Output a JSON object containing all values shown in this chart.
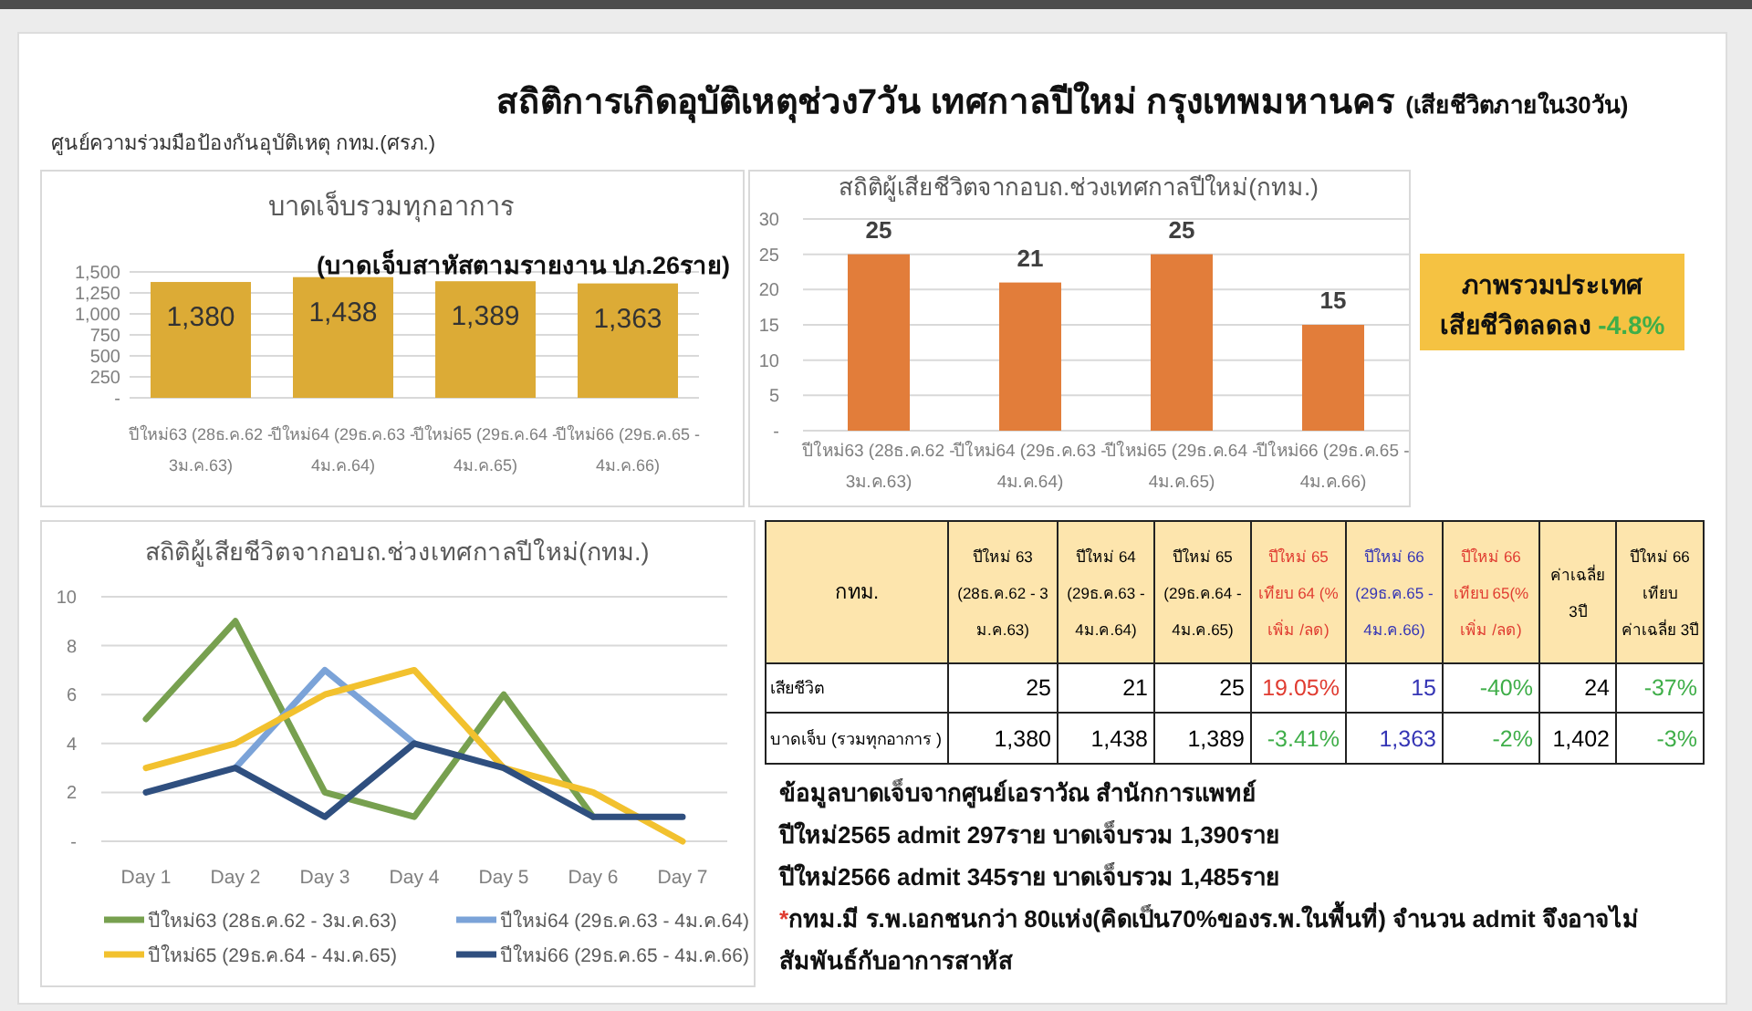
{
  "chart_data": [
    {
      "type": "other",
      "title": "สถิติการเกิดอุบัติเหตุช่วง7วัน เทศกาลปีใหม่ กรุงเทพมหานคร",
      "subtitle": "(เสียชีวิตภายใน30วัน)",
      "annotations": [
        "ศูนย์ความร่วมมือป้องกันอุบัติเหตุ กทม.(ศรภ.)"
      ]
    },
    {
      "type": "bar",
      "title": "บาดเจ็บรวมทุกอาการ",
      "annotations": [
        "(บาดเจ็บสาหัสตามรายงาน ปภ.26ราย)"
      ],
      "categories": [
        "ปีใหม่63 (28ธ.ค.62 - 3ม.ค.63)",
        "ปีใหม่64 (29ธ.ค.63 - 4ม.ค.64)",
        "ปีใหม่65 (29ธ.ค.64 - 4ม.ค.65)",
        "ปีใหม่66 (29ธ.ค.65 - 4ม.ค.66)"
      ],
      "values": [
        1380,
        1438,
        1389,
        1363
      ],
      "value_labels": [
        "1,380",
        "1,438",
        "1,389",
        "1,363"
      ],
      "color": "#dcab36",
      "ylim": [
        0,
        1500
      ],
      "yticks": [
        {
          "value": 0,
          "label": "-"
        },
        250,
        500,
        750,
        {
          "value": 1000,
          "label": "1,000"
        },
        {
          "value": 1250,
          "label": "1,250"
        },
        {
          "value": 1500,
          "label": "1,500"
        }
      ],
      "grid": "y"
    },
    {
      "type": "bar",
      "title": "สถิติผู้เสียชีวิตจากอบถ.ช่วงเทศกาลปีใหม่(กทม.)",
      "categories": [
        "ปีใหม่63 (28ธ.ค.62 - 3ม.ค.63)",
        "ปีใหม่64 (29ธ.ค.63 - 4ม.ค.64)",
        "ปีใหม่65 (29ธ.ค.64 - 4ม.ค.65)",
        "ปีใหม่66 (29ธ.ค.65 - 4ม.ค.66)"
      ],
      "values": [
        25,
        21,
        25,
        15
      ],
      "data_labels": true,
      "color": "#e27d3a",
      "ylim": [
        0,
        30
      ],
      "yticks": [
        {
          "value": 0,
          "label": "-"
        },
        5,
        10,
        15,
        20,
        25,
        30
      ],
      "grid": "y"
    },
    {
      "type": "other",
      "title": "ภาพรวมประเทศ",
      "annotations": [
        "เสียชีวิตลดลง",
        "-4.8%"
      ]
    },
    {
      "type": "line",
      "title": "สถิติผู้เสียชีวิตจากอบถ.ช่วงเทศกาลปีใหม่(กทม.)",
      "categories": [
        "Day 1",
        "Day 2",
        "Day 3",
        "Day 4",
        "Day 5",
        "Day 6",
        "Day 7"
      ],
      "series": [
        {
          "name": "ปีใหม่63 (28ธ.ค.62 - 3ม.ค.63)",
          "color": "#77a04f",
          "values": [
            5,
            9,
            2,
            1,
            6,
            1,
            null
          ]
        },
        {
          "name": "ปีใหม่64 (29ธ.ค.63 - 4ม.ค.64)",
          "color": "#7ba3d8",
          "values": [
            null,
            3,
            7,
            4,
            null,
            null,
            null
          ]
        },
        {
          "name": "ปีใหม่65 (29ธ.ค.64 - 4ม.ค.65)",
          "color": "#f2c12e",
          "values": [
            3,
            4,
            6,
            7,
            3,
            2,
            0
          ]
        },
        {
          "name": "ปีใหม่66 (29ธ.ค.65 - 4ม.ค.66)",
          "color": "#2f4f7f",
          "values": [
            2,
            3,
            1,
            4,
            3,
            1,
            1
          ]
        }
      ],
      "ylim": [
        0,
        10
      ],
      "yticks": [
        {
          "value": 0,
          "label": "-"
        },
        2,
        4,
        6,
        8,
        10
      ],
      "grid": "y",
      "legend": "bottom",
      "marker": "none",
      "line_style": "solid"
    },
    {
      "type": "other",
      "title": "กทม.",
      "categories": [
        "ปีใหม่ 63 (28ธ.ค.62 - 3 ม.ค.63)",
        "ปีใหม่ 64 (29ธ.ค.63 - 4ม.ค.64)",
        "ปีใหม่ 65 (29ธ.ค.64 - 4ม.ค.65)",
        "ปีใหม่ 65 เทียบ 64 (% เพิ่ม /ลด)",
        "ปีใหม่ 66 (29ธ.ค.65 - 4ม.ค.66)",
        "ปีใหม่ 66 เทียบ 65(% เพิ่ม /ลด)",
        "ค่าเฉลี่ย 3ปี",
        "ปีใหม่ 66 เทียบ ค่าเฉลี่ย 3ปี"
      ],
      "y_categories": [
        "เสียชีวิต",
        "บาดเจ็บ (รวมทุกอาการ )"
      ],
      "cell_labels": [
        [
          "25",
          "21",
          "25",
          "19.05%",
          "15",
          "-40%",
          "24",
          "-37%"
        ],
        [
          "1,380",
          "1,438",
          "1,389",
          "-3.41%",
          "1,363",
          "-2%",
          "1,402",
          "-3%"
        ]
      ]
    },
    {
      "type": "other",
      "annotations": [
        "ข้อมูลบาดเจ็บจากศูนย์เอราวัณ สำนักการแพทย์",
        "ปีใหม่2565 admit 297ราย บาดเจ็บรวม 1,390ราย",
        "ปีใหม่2566 admit 345ราย บาดเจ็บรวม 1,485ราย",
        "*กทม.มี ร.พ.เอกชนกว่า 80แห่ง(คิดเป็น70%ของร.พ.ในพื้นที่) จำนวน admit จึงอาจไม่สัมพันธ์กับอาการสาหัส"
      ]
    }
  ]
}
